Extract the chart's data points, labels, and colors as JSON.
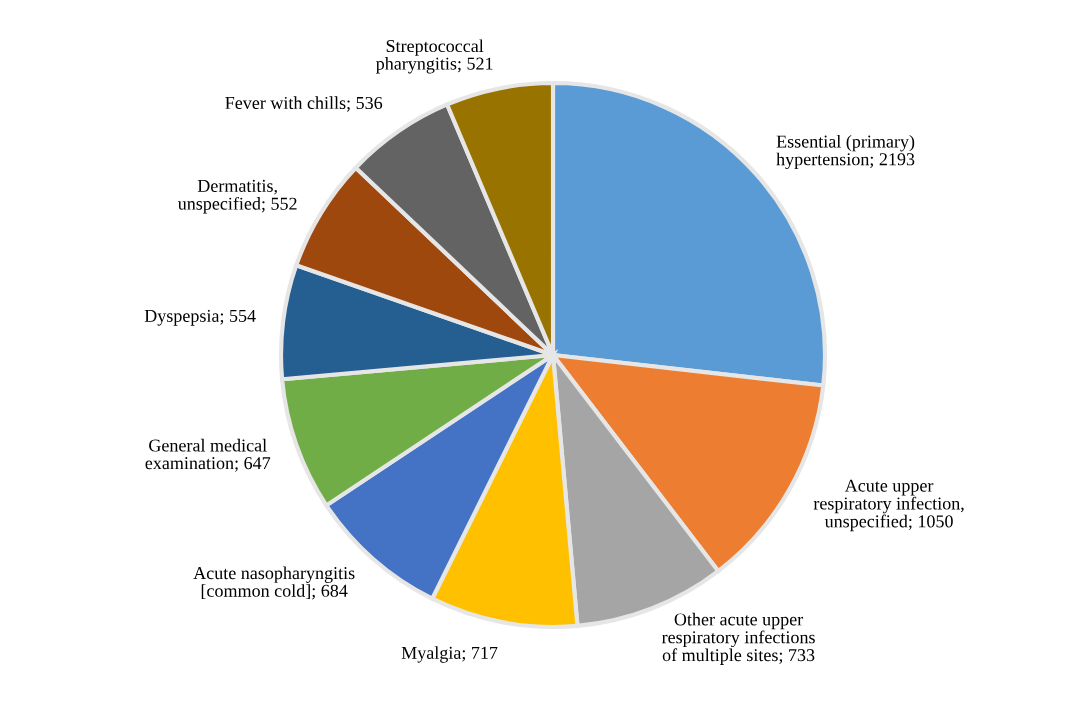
{
  "chart_data": {
    "type": "pie",
    "categories": [
      "Essential (primary)\nhypertension; 2193",
      "Acute upper\nrespiratory infection,\nunspecified; 1050",
      "Other acute upper\nrespiratory infections\nof multiple sites; 733",
      "Myalgia; 717",
      "Acute nasopharyngitis\n[common cold]; 684",
      "General medical\nexamination; 647",
      "Dyspepsia; 554",
      "Dermatitis,\nunspecified; 552",
      "Fever with chills; 536",
      "Streptococcal\npharyngitis; 521"
    ],
    "values": [
      2193,
      1050,
      733,
      717,
      684,
      647,
      554,
      552,
      536,
      521
    ],
    "colors": [
      "#5b9bd5",
      "#ed7d31",
      "#a5a5a5",
      "#ffc000",
      "#4472c4",
      "#70ad47",
      "#255e91",
      "#9e480e",
      "#636363",
      "#997300"
    ],
    "legend": false
  }
}
